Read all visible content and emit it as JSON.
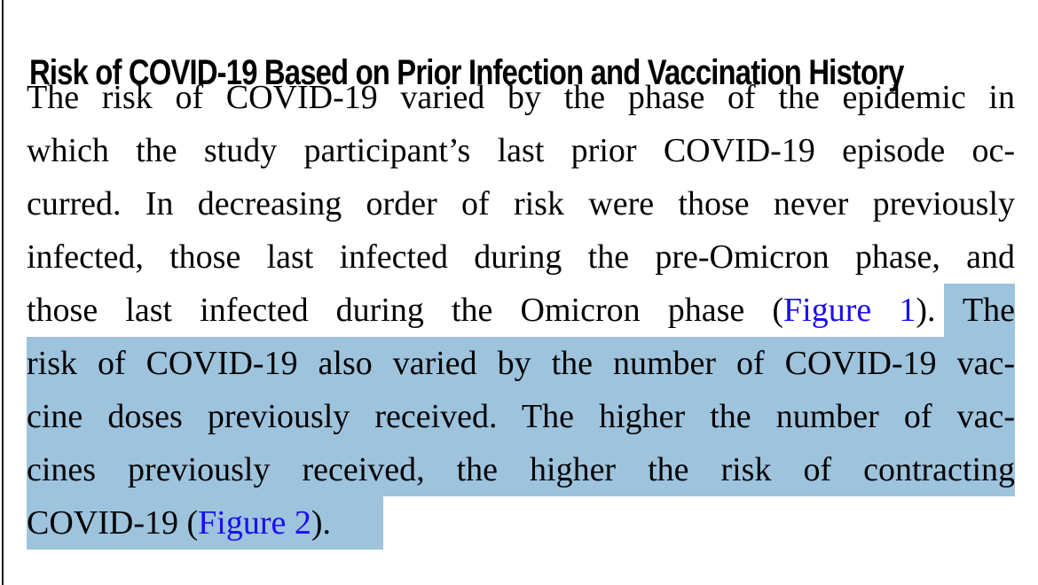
{
  "page": {
    "heading": "Risk of COVID-19 Based on Prior Infection and Vaccination History",
    "highlight_color": "#9ec3dd",
    "link_color": "#1a0df2",
    "lines": [
      {
        "segs": [
          {
            "t": "The risk of COVID-19 varied by the phase of the epidemic in"
          }
        ]
      },
      {
        "segs": [
          {
            "t": "which the study participant’s last prior COVID-19 episode oc-"
          }
        ]
      },
      {
        "segs": [
          {
            "t": "curred. In decreasing order of risk were those never previously"
          }
        ]
      },
      {
        "segs": [
          {
            "t": "infected, those last infected during the pre-Omicron phase, and"
          }
        ]
      },
      {
        "segs": [
          {
            "t": "those last infected during the Omicron phase ("
          },
          {
            "t": "Figure 1",
            "link": true
          },
          {
            "t": "). "
          },
          {
            "t": "The",
            "highlighted": true
          }
        ]
      },
      {
        "segs": [
          {
            "t": "risk of COVID-19 also varied by the number of COVID-19 vac-",
            "highlighted": true
          }
        ]
      },
      {
        "segs": [
          {
            "t": "cine doses previously received. The higher the number of vac-",
            "highlighted": true
          }
        ]
      },
      {
        "segs": [
          {
            "t": "cines previously received, the higher the risk of contracting",
            "highlighted": true
          }
        ]
      },
      {
        "segs": [
          {
            "t": "COVID-19 (",
            "highlighted": true
          },
          {
            "t": "Figure 2",
            "link": true,
            "highlighted": true
          },
          {
            "t": ").",
            "highlighted": true
          }
        ]
      }
    ]
  }
}
